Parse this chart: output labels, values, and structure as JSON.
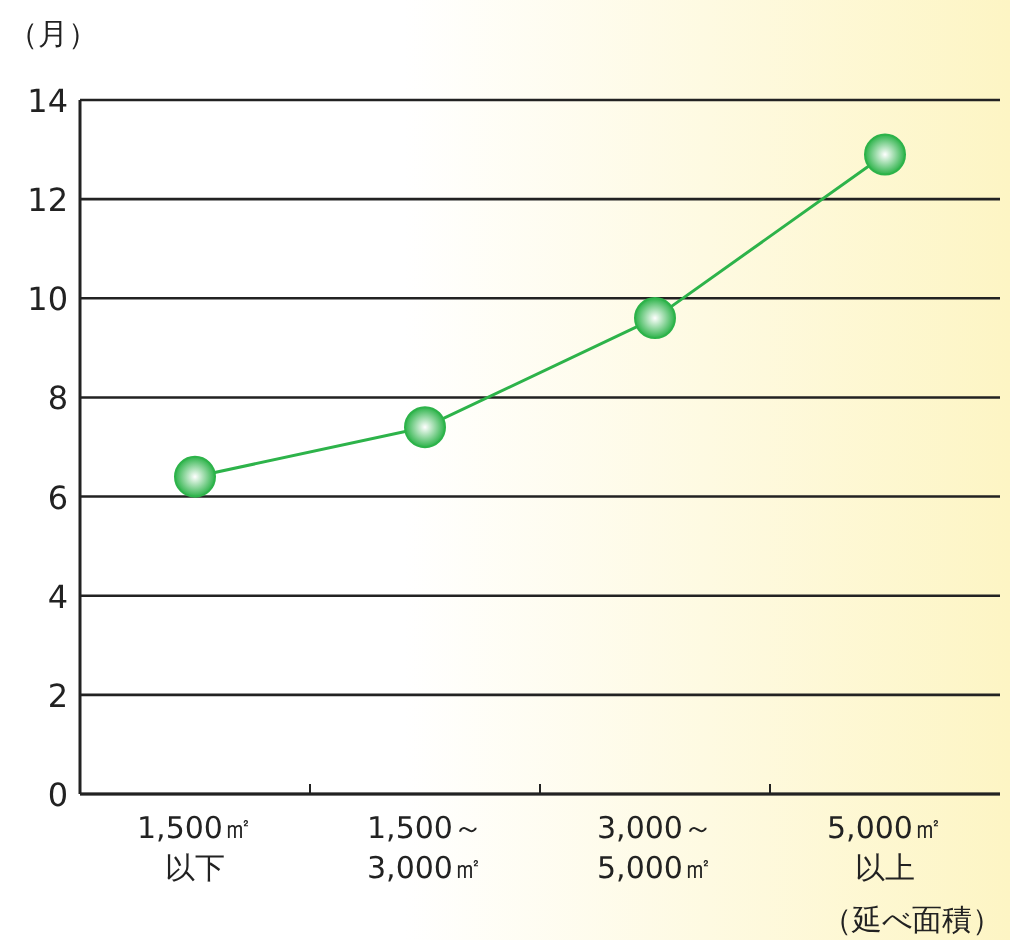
{
  "chart_data": {
    "type": "line",
    "ylabel": "（月）",
    "xlabel": "（延べ面積）",
    "categories": [
      "1,500㎡以下",
      "1,500～3,000㎡",
      "3,000～5,000㎡",
      "5,000㎡以上"
    ],
    "series": [
      {
        "color": "#2db34a",
        "values": [
          6.4,
          7.4,
          9.6,
          12.9
        ]
      }
    ],
    "ylim": [
      0,
      14
    ],
    "yticks": [
      0,
      2,
      4,
      6,
      8,
      10,
      12,
      14
    ],
    "grid": "y",
    "marker": "circle"
  }
}
